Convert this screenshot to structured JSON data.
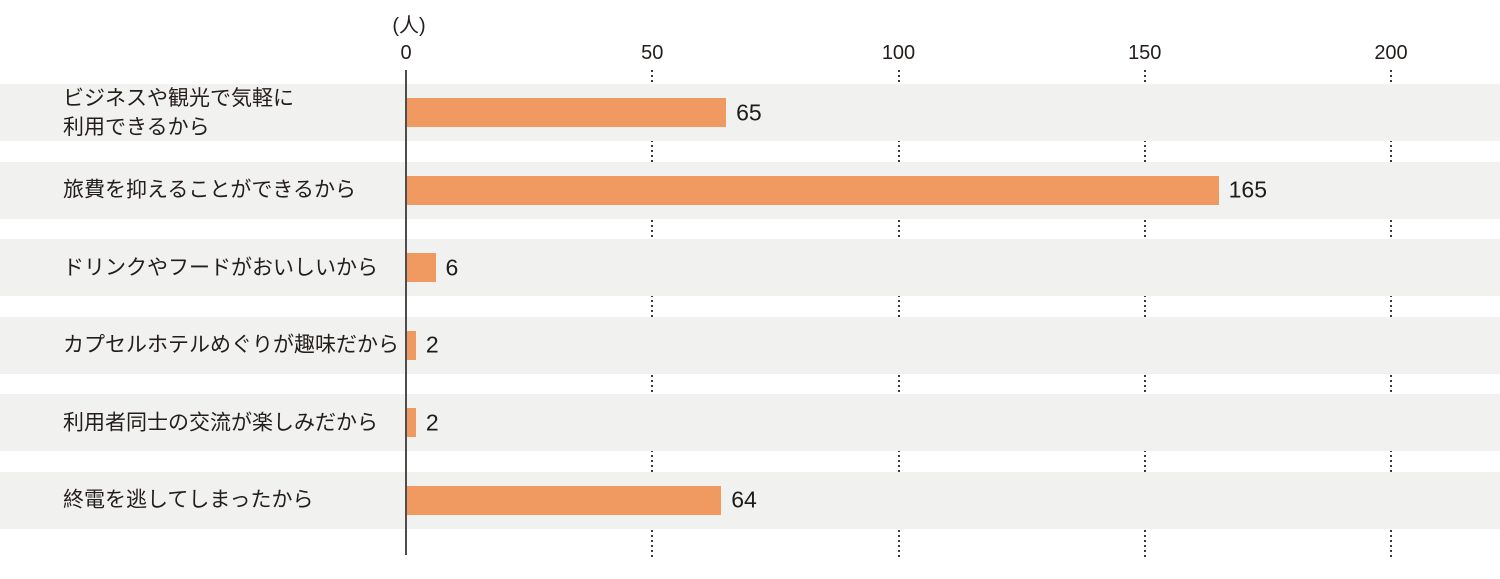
{
  "chart_data": {
    "type": "bar",
    "orientation": "horizontal",
    "title": "",
    "unit_label": "(人)",
    "xlabel": "",
    "ylabel": "",
    "categories": [
      "ビジネスや観光で気軽に\n利用できるから",
      "旅費を抑えることができるから",
      "ドリンクやフードがおいしいから",
      "カプセルホテルめぐりが趣味だから",
      "利用者同士の交流が楽しみだから",
      "終電を逃してしまったから"
    ],
    "values": [
      65,
      165,
      6,
      2,
      2,
      64
    ],
    "axis_ticks": [
      0,
      50,
      100,
      150,
      200
    ],
    "xlim": [
      0,
      222
    ],
    "grid": "dotted-vertical-in-row-gaps",
    "legend": "none",
    "colors": {
      "bar": "#f09a61",
      "row_band": "#f1f1f0",
      "text": "#231d1b",
      "axis_line": "#4d4d4d",
      "grid_dots": "#3c3c3c",
      "background": "#ffffff"
    }
  }
}
